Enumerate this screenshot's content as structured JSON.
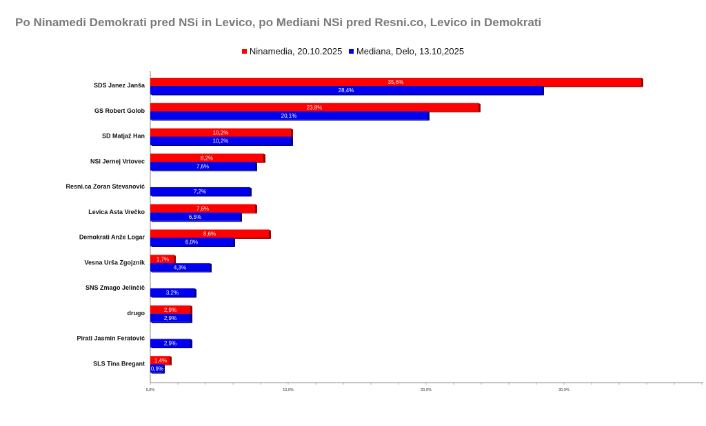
{
  "chart_data": {
    "type": "bar",
    "orientation": "horizontal",
    "title": "Po Ninamedi Demokrati pred NSi in Levico, po Mediani NSi pred Resni.co, Levico in Demokrati",
    "legend_position": "top-center",
    "categories": [
      "SDS Janez Janša",
      "GS Robert Golob",
      "SD Matjaž Han",
      "NSi Jernej Vrtovec",
      "Resni.ca Zoran Stevanović",
      "Levica  Asta Vrečko",
      "Demokrati Anže Logar",
      "Vesna Urša Zgojznik",
      "SNS Zmago Jelinčič",
      "drugo",
      "Pirati Jasmin Feratović",
      "SLS Tina Bregant"
    ],
    "series": [
      {
        "name": "Ninamedia, 20.10.2025",
        "color": "#ff0000",
        "values": [
          35.6,
          23.8,
          10.2,
          8.2,
          null,
          7.6,
          8.6,
          1.7,
          null,
          2.9,
          null,
          1.4
        ],
        "labels": [
          "35,6%",
          "23,8%",
          "10,2%",
          "8,2%",
          "",
          "7,6%",
          "8,6%",
          "1,7%",
          "",
          "2,9%",
          "",
          "1,4%"
        ]
      },
      {
        "name": "Mediana, Delo, 13.10,2025",
        "color": "#0000ee",
        "values": [
          28.4,
          20.1,
          10.2,
          7.6,
          7.2,
          6.5,
          6.0,
          4.3,
          3.2,
          2.9,
          2.9,
          0.9
        ],
        "labels": [
          "28,4%",
          "20,1%",
          "10,2%",
          "7,6%",
          "7,2%",
          "6,5%",
          "6,0%",
          "4,3%",
          "3,2%",
          "2,9%",
          "2,9%",
          "0,9%"
        ]
      }
    ],
    "xlim": [
      0,
      40
    ],
    "x_ticks": [
      0,
      10,
      20,
      30
    ],
    "x_tick_labels": [
      "0,0%",
      "10,0%",
      "20,0%",
      "30,0%"
    ],
    "grid": false
  }
}
